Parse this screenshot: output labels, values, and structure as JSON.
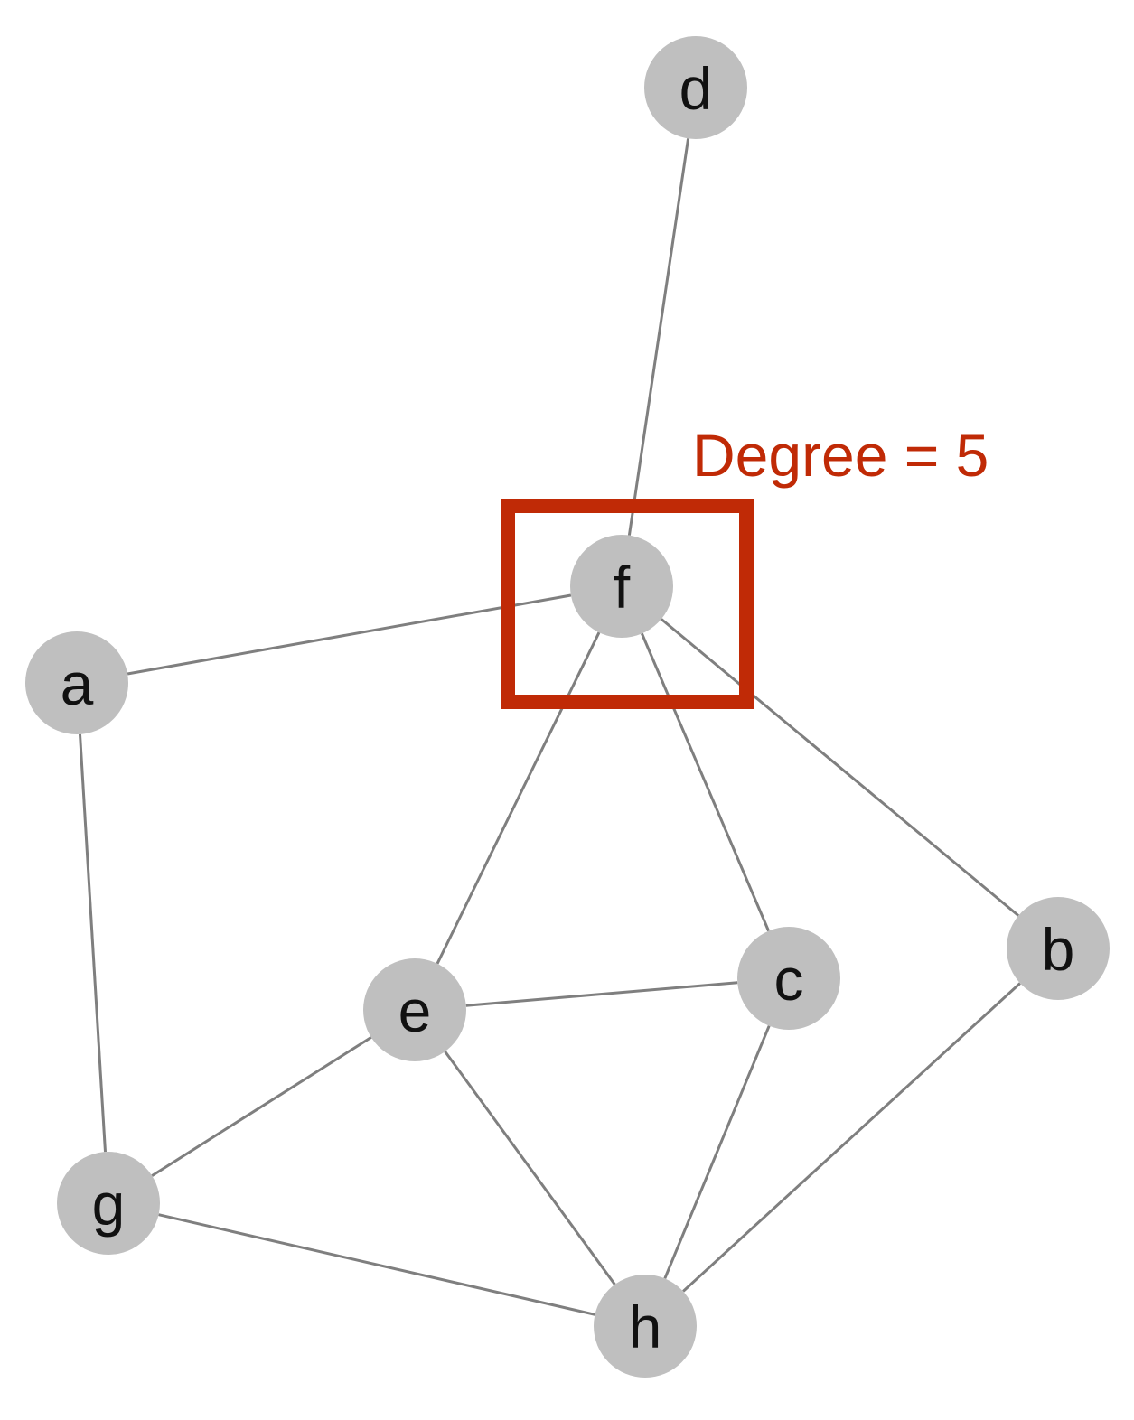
{
  "graph": {
    "nodes": [
      {
        "id": "d",
        "label": "d"
      },
      {
        "id": "f",
        "label": "f"
      },
      {
        "id": "a",
        "label": "a"
      },
      {
        "id": "e",
        "label": "e"
      },
      {
        "id": "c",
        "label": "c"
      },
      {
        "id": "b",
        "label": "b"
      },
      {
        "id": "g",
        "label": "g"
      },
      {
        "id": "h",
        "label": "h"
      }
    ],
    "edges": [
      {
        "from": "d",
        "to": "f"
      },
      {
        "from": "a",
        "to": "f"
      },
      {
        "from": "f",
        "to": "e"
      },
      {
        "from": "f",
        "to": "c"
      },
      {
        "from": "f",
        "to": "b"
      },
      {
        "from": "a",
        "to": "g"
      },
      {
        "from": "e",
        "to": "c"
      },
      {
        "from": "e",
        "to": "g"
      },
      {
        "from": "e",
        "to": "h"
      },
      {
        "from": "c",
        "to": "h"
      },
      {
        "from": "b",
        "to": "h"
      },
      {
        "from": "g",
        "to": "h"
      }
    ]
  },
  "highlight": {
    "node": "f",
    "annotation": "Degree = 5",
    "color": "#c02a06"
  },
  "colors": {
    "node_fill": "#bfbfbf",
    "edge": "#7f7f7f",
    "label": "#111111"
  }
}
